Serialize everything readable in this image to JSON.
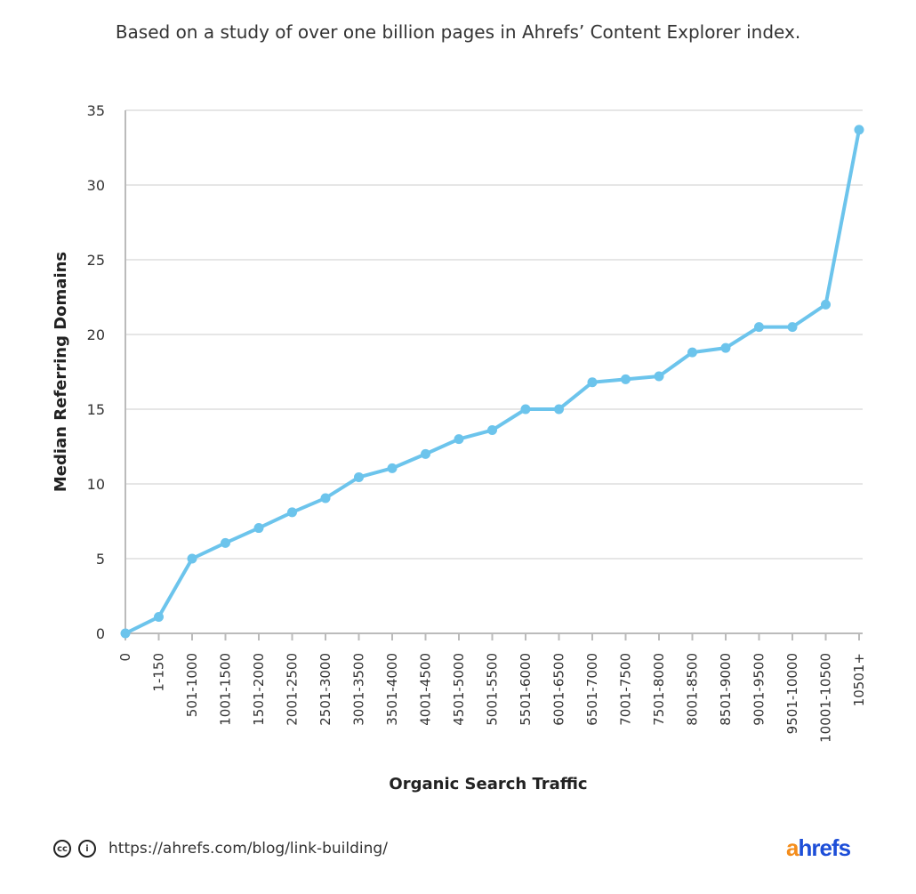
{
  "subtitle": "Based on a study of over one billion pages in Ahrefs’ Content Explorer index.",
  "footer": {
    "url": "https://ahrefs.com/blog/link-building/",
    "license_icons": [
      "cc-icon",
      "by-attribution-icon"
    ],
    "logo_a": "a",
    "logo_rest": "hrefs"
  },
  "colors": {
    "line": "#6cc4ec",
    "grid": "#e6e6e6",
    "logo_orange": "#f48d1c",
    "logo_blue": "#1d4ed8"
  },
  "chart_data": {
    "type": "line",
    "xlabel": "Organic Search Traffic",
    "ylabel": "Median Referring Domains",
    "ylim": [
      0,
      35
    ],
    "yticks": [
      0,
      5,
      10,
      15,
      20,
      25,
      30,
      35
    ],
    "grid": true,
    "categories": [
      "0",
      "1-150",
      "501-1000",
      "1001-1500",
      "1501-2000",
      "2001-2500",
      "2501-3000",
      "3001-3500",
      "3501-4000",
      "4001-4500",
      "4501-5000",
      "5001-5500",
      "5501-6000",
      "6001-6500",
      "6501-7000",
      "7001-7500",
      "7501-8000",
      "8001-8500",
      "8501-9000",
      "9001-9500",
      "9501-10000",
      "10001-10500",
      "10501+"
    ],
    "values": [
      0,
      1.1,
      5,
      6.05,
      7.05,
      8.1,
      9.05,
      10.45,
      11.05,
      12,
      13,
      13.6,
      15,
      15,
      16.8,
      17,
      17.2,
      18.8,
      19.1,
      20.5,
      20.5,
      22,
      33.7
    ]
  }
}
